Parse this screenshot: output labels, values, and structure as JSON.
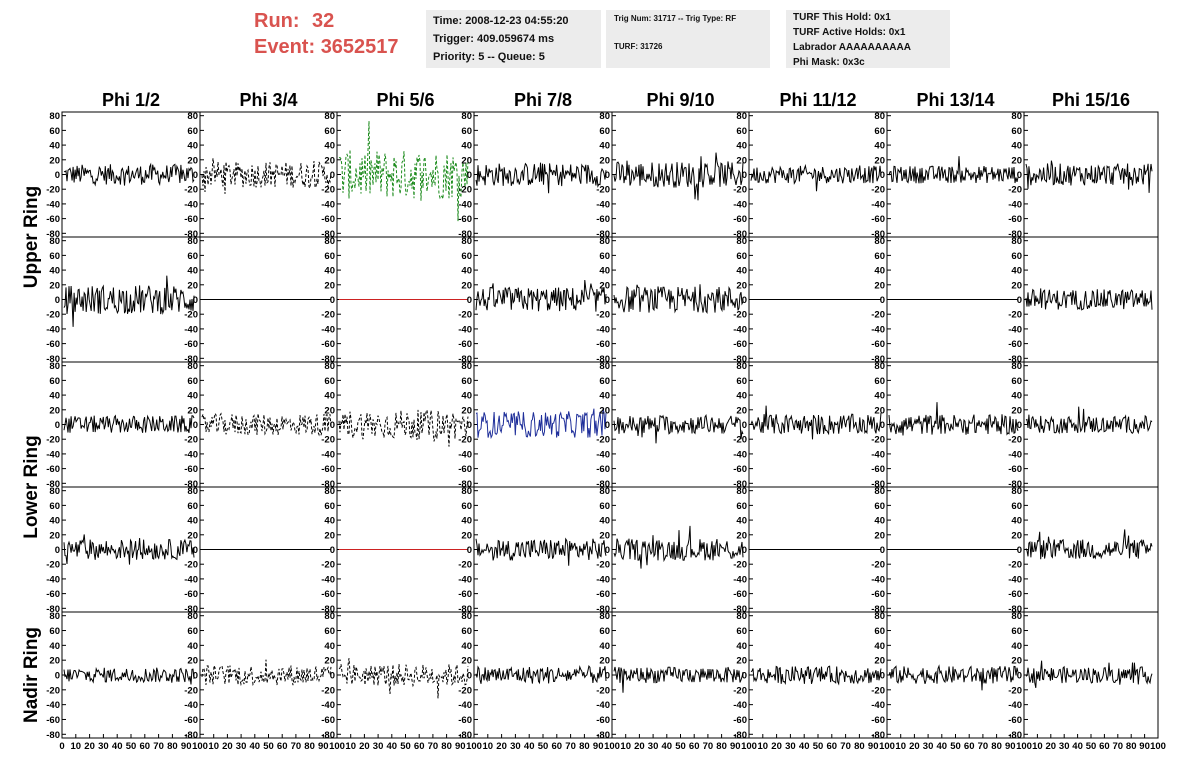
{
  "header": {
    "run_label": "Run:",
    "run_value": "32",
    "event_label": "Event:",
    "event_value": "3652517"
  },
  "info": {
    "time": "Time: 2008-12-23 04:55:20",
    "trigger": "Trigger: 409.059674 ms",
    "priority": "Priority: 5 -- Queue: 5",
    "trig_num": "Trig Num: 31717 -- Trig Type: RF",
    "turf": "TURF: 31726",
    "turf_this_hold": "TURF This Hold: 0x1",
    "turf_active_holds": "TURF Active Holds: 0x1",
    "labrador": "Labrador AAAAAAAAAA",
    "phi_mask": "Phi Mask: 0x3c"
  },
  "chart_data": {
    "type": "line",
    "columns": [
      "Phi 1/2",
      "Phi 3/4",
      "Phi 5/6",
      "Phi 7/8",
      "Phi 9/10",
      "Phi 11/12",
      "Phi 13/14",
      "Phi 15/16"
    ],
    "ring_labels": [
      "Upper Ring",
      "Lower Ring",
      "Nadir Ring"
    ],
    "ylim": [
      -85,
      85
    ],
    "y_ticks": [
      -80,
      -60,
      -40,
      -20,
      0,
      20,
      40,
      60,
      80
    ],
    "xlim": [
      0,
      100
    ],
    "x_ticks": [
      0,
      10,
      20,
      30,
      40,
      50,
      60,
      70,
      80,
      90,
      100
    ],
    "panels": [
      [
        {
          "style": "solid",
          "color": "#000000",
          "amp": 14,
          "flat": false
        },
        {
          "style": "dashed",
          "color": "#000000",
          "amp": 18,
          "flat": false
        },
        {
          "style": "dashed",
          "color": "#1a8a1a",
          "amp": 34,
          "flat": false
        },
        {
          "style": "solid",
          "color": "#000000",
          "amp": 16,
          "flat": false
        },
        {
          "style": "solid",
          "color": "#000000",
          "amp": 18,
          "flat": false
        },
        {
          "style": "solid",
          "color": "#000000",
          "amp": 12,
          "flat": false
        },
        {
          "style": "solid",
          "color": "#000000",
          "amp": 12,
          "flat": false
        },
        {
          "style": "solid",
          "color": "#000000",
          "amp": 15,
          "flat": false
        }
      ],
      [
        {
          "style": "solid",
          "color": "#000000",
          "amp": 20,
          "flat": false
        },
        {
          "style": "solid",
          "color": "#000000",
          "amp": 0,
          "flat": true
        },
        {
          "style": "solid",
          "color": "#cc2222",
          "amp": 0,
          "flat": true
        },
        {
          "style": "solid",
          "color": "#000000",
          "amp": 17,
          "flat": false
        },
        {
          "style": "solid",
          "color": "#000000",
          "amp": 18,
          "flat": false
        },
        {
          "style": "solid",
          "color": "#000000",
          "amp": 0,
          "flat": true
        },
        {
          "style": "solid",
          "color": "#000000",
          "amp": 0,
          "flat": true
        },
        {
          "style": "solid",
          "color": "#000000",
          "amp": 14,
          "flat": false
        }
      ],
      [
        {
          "style": "solid",
          "color": "#000000",
          "amp": 12,
          "flat": false
        },
        {
          "style": "dashed",
          "color": "#000000",
          "amp": 15,
          "flat": false
        },
        {
          "style": "dashed",
          "color": "#000000",
          "amp": 20,
          "flat": false
        },
        {
          "style": "solid",
          "color": "#1f2f9a",
          "amp": 18,
          "flat": false
        },
        {
          "style": "solid",
          "color": "#000000",
          "amp": 13,
          "flat": false
        },
        {
          "style": "solid",
          "color": "#000000",
          "amp": 14,
          "flat": false
        },
        {
          "style": "solid",
          "color": "#000000",
          "amp": 14,
          "flat": false
        },
        {
          "style": "solid",
          "color": "#000000",
          "amp": 12,
          "flat": false
        }
      ],
      [
        {
          "style": "solid",
          "color": "#000000",
          "amp": 14,
          "flat": false
        },
        {
          "style": "solid",
          "color": "#000000",
          "amp": 0,
          "flat": true
        },
        {
          "style": "solid",
          "color": "#cc2222",
          "amp": 0,
          "flat": true
        },
        {
          "style": "solid",
          "color": "#000000",
          "amp": 15,
          "flat": false
        },
        {
          "style": "solid",
          "color": "#000000",
          "amp": 15,
          "flat": false
        },
        {
          "style": "solid",
          "color": "#000000",
          "amp": 0,
          "flat": true
        },
        {
          "style": "solid",
          "color": "#000000",
          "amp": 0,
          "flat": true
        },
        {
          "style": "solid",
          "color": "#000000",
          "amp": 14,
          "flat": false
        }
      ],
      [
        {
          "style": "solid",
          "color": "#000000",
          "amp": 10,
          "flat": false
        },
        {
          "style": "dashed",
          "color": "#000000",
          "amp": 14,
          "flat": false
        },
        {
          "style": "dashed",
          "color": "#000000",
          "amp": 15,
          "flat": false
        },
        {
          "style": "solid",
          "color": "#000000",
          "amp": 12,
          "flat": false
        },
        {
          "style": "solid",
          "color": "#000000",
          "amp": 11,
          "flat": false
        },
        {
          "style": "solid",
          "color": "#000000",
          "amp": 12,
          "flat": false
        },
        {
          "style": "solid",
          "color": "#000000",
          "amp": 12,
          "flat": false
        },
        {
          "style": "solid",
          "color": "#000000",
          "amp": 11,
          "flat": false
        }
      ]
    ]
  }
}
